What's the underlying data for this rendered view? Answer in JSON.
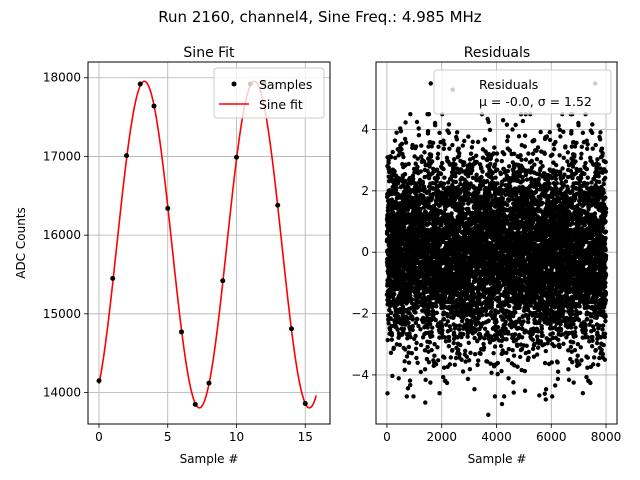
{
  "figure": {
    "suptitle": "Run 2160, channel4, Sine Freq.: 4.985 MHz"
  },
  "chart_data": [
    {
      "type": "line",
      "title": "Sine Fit",
      "xlabel": "Sample #",
      "ylabel": "ADC Counts",
      "xlim": [
        -0.8,
        16.8
      ],
      "ylim": [
        13600,
        18200
      ],
      "xticks": [
        0,
        5,
        10,
        15
      ],
      "yticks": [
        14000,
        15000,
        16000,
        17000,
        18000
      ],
      "grid": true,
      "legend_position": "upper right",
      "fit": {
        "amplitude": 2075,
        "offset": 15880,
        "period": 8.0,
        "peak_at": 3.3,
        "x_range": [
          0,
          15.8
        ]
      },
      "series": [
        {
          "name": "Samples",
          "kind": "scatter",
          "color": "#000000",
          "x": [
            0,
            1,
            2,
            3,
            4,
            5,
            6,
            7,
            8,
            9,
            10,
            11,
            12,
            13,
            14,
            15
          ],
          "y": [
            14150,
            15450,
            17010,
            17920,
            17640,
            16340,
            14770,
            13850,
            14120,
            15420,
            16990,
            17920,
            17930,
            16380,
            14810,
            13860
          ]
        },
        {
          "name": "Sine fit",
          "kind": "line",
          "color": "#ff0000"
        }
      ]
    },
    {
      "type": "scatter",
      "title": "Residuals",
      "xlabel": "Sample #",
      "ylabel": "",
      "xlim": [
        -400,
        8400
      ],
      "ylim": [
        -5.6,
        6.2
      ],
      "xticks": [
        0,
        2000,
        4000,
        6000,
        8000
      ],
      "yticks": [
        -4,
        -2,
        0,
        2,
        4
      ],
      "grid": true,
      "legend_position": "upper right",
      "legend_label": "Residuals",
      "legend_stats": "μ = -0.0, σ = 1.52",
      "n_points": 8000,
      "mean": 0.0,
      "std": 1.52,
      "x_range": [
        0,
        8000
      ],
      "color": "#000000",
      "outliers": [
        {
          "x": 3700,
          "y": -5.3
        },
        {
          "x": 1600,
          "y": 5.5
        },
        {
          "x": 7600,
          "y": 5.5
        },
        {
          "x": 2400,
          "y": 5.3
        },
        {
          "x": 20,
          "y": -4.6
        },
        {
          "x": 1400,
          "y": -4.9
        },
        {
          "x": 5800,
          "y": -4.8
        },
        {
          "x": 4200,
          "y": -4.95
        }
      ]
    }
  ]
}
